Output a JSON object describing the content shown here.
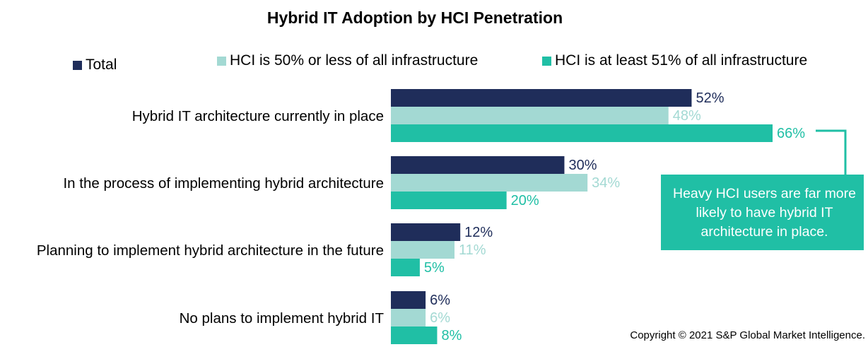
{
  "chart_data": {
    "type": "bar",
    "orientation": "horizontal",
    "title": "Hybrid IT Adoption by HCI Penetration",
    "categories": [
      "Hybrid IT architecture currently in place",
      "In the process of implementing hybrid architecture",
      "Planning to implement hybrid architecture in the future",
      "No plans to implement hybrid IT"
    ],
    "series": [
      {
        "name": "Total",
        "color": "#1f2d5a",
        "values": [
          52,
          30,
          12,
          6
        ],
        "labels": [
          "52%",
          "30%",
          "12%",
          "6%"
        ]
      },
      {
        "name": "HCI is 50% or less of all infrastructure",
        "color": "#a3d9d3",
        "values": [
          48,
          34,
          11,
          6
        ],
        "labels": [
          "48%",
          "34%",
          "11%",
          "6%"
        ]
      },
      {
        "name": "HCI is at least 51% of all infrastructure",
        "color": "#20bfa5",
        "values": [
          66,
          20,
          5,
          8
        ],
        "labels": [
          "66%",
          "20%",
          "5%",
          "8%"
        ]
      }
    ],
    "xlim": [
      0,
      66
    ],
    "grid": false,
    "legend_position": "top",
    "annotation": "Heavy HCI users are far more likely to have hybrid IT architecture in place."
  },
  "copyright": "Copyright © 2021 S&P Global Market Intelligence."
}
